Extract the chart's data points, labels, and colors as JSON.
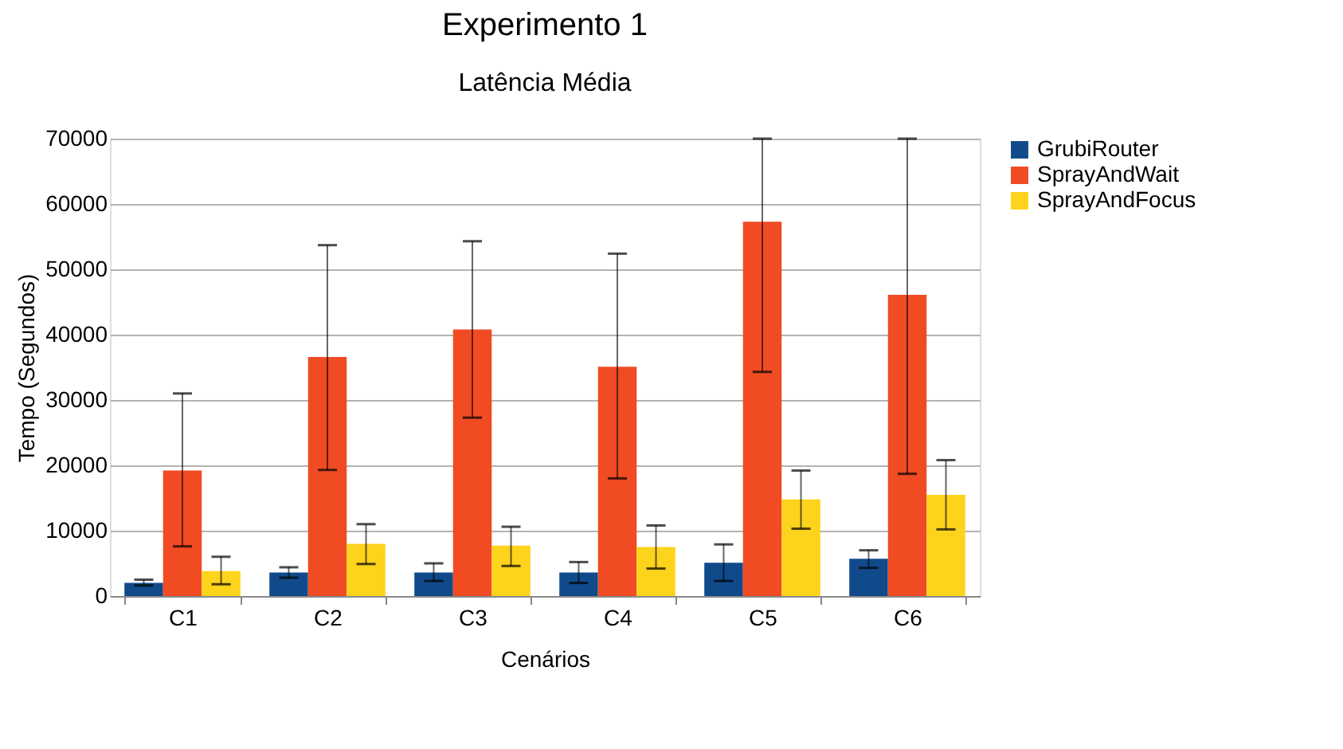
{
  "chart_data": {
    "type": "bar",
    "title": "Experimento 1",
    "subtitle": "Latência Média",
    "xlabel": "Cenários",
    "ylabel": "Tempo (Segundos)",
    "categories": [
      "C1",
      "C2",
      "C3",
      "C4",
      "C5",
      "C6"
    ],
    "series": [
      {
        "name": "GrubiRouter",
        "color": "#114a8b",
        "values": [
          2000,
          3600,
          3600,
          3600,
          5100,
          5700
        ],
        "errors": [
          [
            1600,
            2500
          ],
          [
            2800,
            4400
          ],
          [
            2300,
            5000
          ],
          [
            2000,
            5200
          ],
          [
            2300,
            7900
          ],
          [
            4300,
            7000
          ]
        ]
      },
      {
        "name": "SprayAndWait",
        "color": "#f04b23",
        "values": [
          19200,
          36600,
          40800,
          35100,
          57300,
          46100
        ],
        "errors": [
          [
            7600,
            31000
          ],
          [
            19300,
            53700
          ],
          [
            27300,
            54300
          ],
          [
            18000,
            52400
          ],
          [
            34300,
            70000
          ],
          [
            18700,
            70000
          ]
        ]
      },
      {
        "name": "SprayAndFocus",
        "color": "#fdd31c",
        "values": [
          3800,
          8000,
          7700,
          7500,
          14800,
          15500
        ],
        "errors": [
          [
            1800,
            6000
          ],
          [
            4900,
            11000
          ],
          [
            4600,
            10600
          ],
          [
            4200,
            10800
          ],
          [
            10300,
            19200
          ],
          [
            10200,
            20800
          ]
        ]
      }
    ],
    "ylim": [
      0,
      70000
    ],
    "yticks": [
      0,
      10000,
      20000,
      30000,
      40000,
      50000,
      60000,
      70000
    ],
    "grid": "y",
    "legend": "right"
  }
}
